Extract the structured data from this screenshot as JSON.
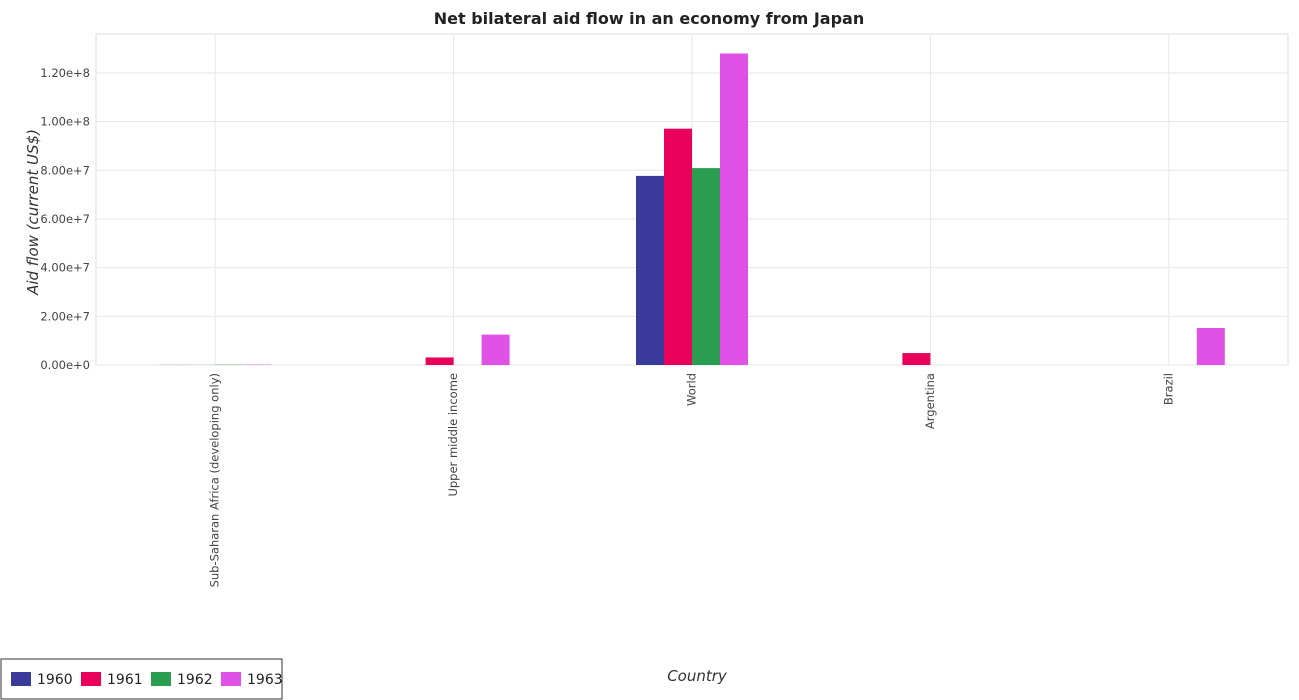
{
  "chart_data": {
    "type": "bar",
    "title": "Net bilateral aid flow in an economy from Japan",
    "xlabel": "Country",
    "ylabel": "Aid flow (current US$)",
    "ylim": [
      0,
      136000000
    ],
    "yticks": [
      0,
      20000000,
      40000000,
      60000000,
      80000000,
      100000000,
      120000000
    ],
    "ytick_labels": [
      "0.00e+0",
      "2.00e+7",
      "4.00e+7",
      "6.00e+7",
      "8.00e+7",
      "1.00e+8",
      "1.20e+8"
    ],
    "categories": [
      "Sub-Saharan Africa (developing only)",
      "Upper middle income",
      "World",
      "Argentina",
      "Brazil"
    ],
    "series": [
      {
        "name": "1960",
        "color": "#3a3a9a",
        "values": [
          50000,
          0,
          77700000,
          0,
          0
        ]
      },
      {
        "name": "1961",
        "color": "#e8005a",
        "values": [
          40000,
          3100000,
          97100000,
          4900000,
          0
        ]
      },
      {
        "name": "1962",
        "color": "#2a9d50",
        "values": [
          130000,
          0,
          80900000,
          0,
          0
        ]
      },
      {
        "name": "1963",
        "color": "#e052e6",
        "values": [
          160000,
          12500000,
          128000000,
          0,
          15200000
        ]
      }
    ],
    "grid": true,
    "legend_position": "bottom-left"
  }
}
